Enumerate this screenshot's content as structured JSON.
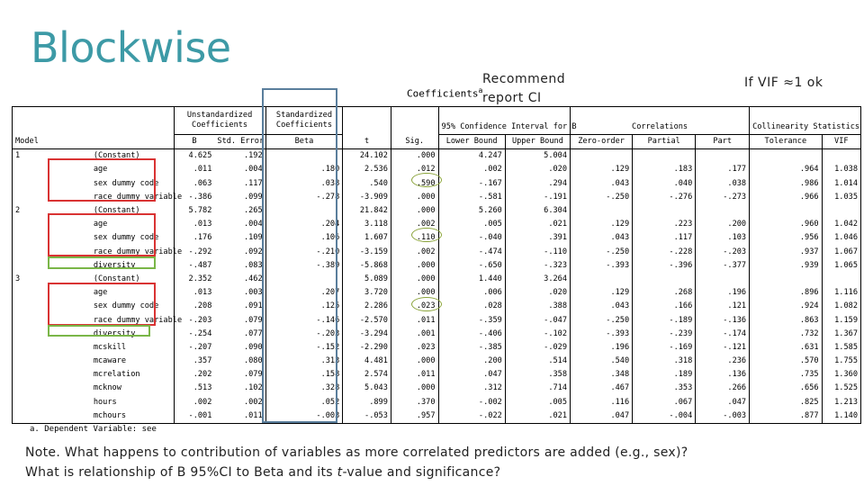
{
  "title": "Blockwise",
  "coefficients_title": "Coefficients",
  "coefficients_sup": "a",
  "recommend_line1": "Recommend",
  "recommend_line2": "report CI",
  "vif_note": "If VIF ≈1 ok",
  "table": {
    "group_headers": {
      "unstd": "Unstandardized Coefficients",
      "std": "Standardized Coefficients",
      "ci": "95% Confidence Interval for B",
      "corr": "Correlations",
      "coll": "Collinearity Statistics"
    },
    "columns": [
      "Model",
      "",
      "B",
      "Std. Error",
      "Beta",
      "t",
      "Sig.",
      "Lower Bound",
      "Upper Bound",
      "Zero-order",
      "Partial",
      "Part",
      "Tolerance",
      "VIF"
    ],
    "rows": [
      [
        "1",
        "(Constant)",
        "4.625",
        ".192",
        "",
        "24.102",
        ".000",
        "4.247",
        "5.004",
        "",
        "",
        "",
        "",
        ""
      ],
      [
        "",
        "age",
        ".011",
        ".004",
        ".180",
        "2.536",
        ".012",
        ".002",
        ".020",
        ".129",
        ".183",
        ".177",
        ".964",
        "1.038"
      ],
      [
        "",
        "sex dummy code",
        ".063",
        ".117",
        ".038",
        ".540",
        ".590",
        "-.167",
        ".294",
        ".043",
        ".040",
        ".038",
        ".986",
        "1.014"
      ],
      [
        "",
        "race dummy variable",
        "-.386",
        ".099",
        "-.278",
        "-3.909",
        ".000",
        "-.581",
        "-.191",
        "-.250",
        "-.276",
        "-.273",
        ".966",
        "1.035"
      ],
      [
        "2",
        "(Constant)",
        "5.782",
        ".265",
        "",
        "21.842",
        ".000",
        "5.260",
        "6.304",
        "",
        "",
        "",
        "",
        ""
      ],
      [
        "",
        "age",
        ".013",
        ".004",
        ".204",
        "3.118",
        ".002",
        ".005",
        ".021",
        ".129",
        ".223",
        ".200",
        ".960",
        "1.042"
      ],
      [
        "",
        "sex dummy code",
        ".176",
        ".109",
        ".106",
        "1.607",
        ".110",
        "-.040",
        ".391",
        ".043",
        ".117",
        ".103",
        ".956",
        "1.046"
      ],
      [
        "",
        "race dummy variable",
        "-.292",
        ".092",
        "-.210",
        "-3.159",
        ".002",
        "-.474",
        "-.110",
        "-.250",
        "-.228",
        "-.203",
        ".937",
        "1.067"
      ],
      [
        "",
        "diversity",
        "-.487",
        ".083",
        "-.389",
        "-5.868",
        ".000",
        "-.650",
        "-.323",
        "-.393",
        "-.396",
        "-.377",
        ".939",
        "1.065"
      ],
      [
        "3",
        "(Constant)",
        "2.352",
        ".462",
        "",
        "5.089",
        ".000",
        "1.440",
        "3.264",
        "",
        "",
        "",
        "",
        ""
      ],
      [
        "",
        "age",
        ".013",
        ".003",
        ".207",
        "3.720",
        ".000",
        ".006",
        ".020",
        ".129",
        ".268",
        ".196",
        ".896",
        "1.116"
      ],
      [
        "",
        "sex dummy code",
        ".208",
        ".091",
        ".125",
        "2.286",
        ".023",
        ".028",
        ".388",
        ".043",
        ".166",
        ".121",
        ".924",
        "1.082"
      ],
      [
        "",
        "race dummy variable",
        "-.203",
        ".079",
        "-.146",
        "-2.570",
        ".011",
        "-.359",
        "-.047",
        "-.250",
        "-.189",
        "-.136",
        ".863",
        "1.159"
      ],
      [
        "",
        "diversity",
        "-.254",
        ".077",
        "-.203",
        "-3.294",
        ".001",
        "-.406",
        "-.102",
        "-.393",
        "-.239",
        "-.174",
        ".732",
        "1.367"
      ],
      [
        "",
        "mcskill",
        "-.207",
        ".090",
        "-.152",
        "-2.290",
        ".023",
        "-.385",
        "-.029",
        ".196",
        "-.169",
        "-.121",
        ".631",
        "1.585"
      ],
      [
        "",
        "mcaware",
        ".357",
        ".080",
        ".313",
        "4.481",
        ".000",
        ".200",
        ".514",
        ".540",
        ".318",
        ".236",
        ".570",
        "1.755"
      ],
      [
        "",
        "mcrelation",
        ".202",
        ".079",
        ".158",
        "2.574",
        ".011",
        ".047",
        ".358",
        ".348",
        ".189",
        ".136",
        ".735",
        "1.360"
      ],
      [
        "",
        "mcknow",
        ".513",
        ".102",
        ".328",
        "5.043",
        ".000",
        ".312",
        ".714",
        ".467",
        ".353",
        ".266",
        ".656",
        "1.525"
      ],
      [
        "",
        "hours",
        ".002",
        ".002",
        ".052",
        ".899",
        ".370",
        "-.002",
        ".005",
        ".116",
        ".067",
        ".047",
        ".825",
        "1.213"
      ],
      [
        "",
        "mchours",
        "-.001",
        ".011",
        "-.003",
        "-.053",
        ".957",
        "-.022",
        ".021",
        ".047",
        "-.004",
        "-.003",
        ".877",
        "1.140"
      ]
    ]
  },
  "footnote": "a. Dependent Variable: see",
  "note_line1": "Note. What happens to contribution of variables as more correlated predictors are added (e.g., sex)?",
  "note_line2_pre": "What is relationship of B 95%CI to Beta and its ",
  "note_line2_italic": "t",
  "note_line2_post": "-value and significance?",
  "colors": {
    "title": "#3d9aa6",
    "highlight_red": "#d93333",
    "highlight_green": "#7ab648",
    "highlight_blue": "#5a7e9c",
    "oval": "#8aa33a"
  }
}
